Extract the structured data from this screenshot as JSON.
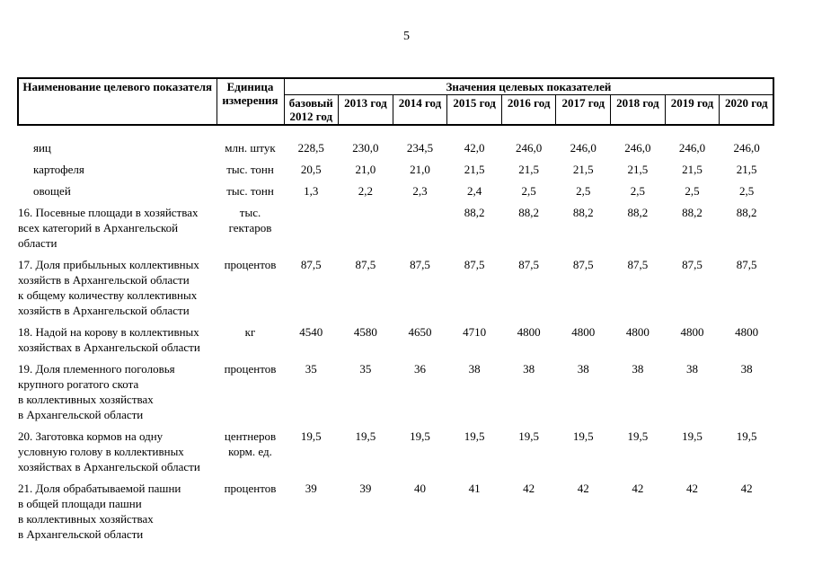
{
  "page": {
    "number": "5",
    "colors": {
      "background": "#ffffff",
      "text": "#000000",
      "table_border": "#000000"
    }
  },
  "table": {
    "header": {
      "name_col": "Наименование целевого показателя",
      "unit_col": "Единица\nизмерения",
      "values_group": "Значения целевых показателей",
      "years": [
        "базовый\n2012 год",
        "2013 год",
        "2014 год",
        "2015 год",
        "2016 год",
        "2017 год",
        "2018 год",
        "2019 год",
        "2020 год"
      ]
    },
    "rows": [
      {
        "indent": true,
        "name": "яиц",
        "unit": "млн. штук",
        "values": [
          "228,5",
          "230,0",
          "234,5",
          "42,0",
          "246,0",
          "246,0",
          "246,0",
          "246,0",
          "246,0"
        ]
      },
      {
        "indent": true,
        "name": "картофеля",
        "unit": "тыс. тонн",
        "values": [
          "20,5",
          "21,0",
          "21,0",
          "21,5",
          "21,5",
          "21,5",
          "21,5",
          "21,5",
          "21,5"
        ]
      },
      {
        "indent": true,
        "name": "овощей",
        "unit": "тыс. тонн",
        "values": [
          "1,3",
          "2,2",
          "2,3",
          "2,4",
          "2,5",
          "2,5",
          "2,5",
          "2,5",
          "2,5"
        ]
      },
      {
        "indent": false,
        "name": "16. Посевные площади в хозяйствах\nвсех категорий в Архангельской\nобласти",
        "unit": "тыс.\nгектаров",
        "values": [
          "",
          "",
          "",
          "88,2",
          "88,2",
          "88,2",
          "88,2",
          "88,2",
          "88,2"
        ]
      },
      {
        "indent": false,
        "name": "17. Доля прибыльных коллективных\nхозяйств в Архангельской области\nк общему количеству коллективных\nхозяйств в Архангельской области",
        "unit": "процентов",
        "values": [
          "87,5",
          "87,5",
          "87,5",
          "87,5",
          "87,5",
          "87,5",
          "87,5",
          "87,5",
          "87,5"
        ]
      },
      {
        "indent": false,
        "name": "18. Надой на корову в коллективных\nхозяйствах в Архангельской области",
        "unit": "кг",
        "values": [
          "4540",
          "4580",
          "4650",
          "4710",
          "4800",
          "4800",
          "4800",
          "4800",
          "4800"
        ]
      },
      {
        "indent": false,
        "name": "19. Доля племенного поголовья\nкрупного рогатого скота\nв коллективных хозяйствах\nв Архангельской области",
        "unit": "процентов",
        "values": [
          "35",
          "35",
          "36",
          "38",
          "38",
          "38",
          "38",
          "38",
          "38"
        ]
      },
      {
        "indent": false,
        "name": "20. Заготовка кормов на одну\nусловную голову в коллективных\nхозяйствах в Архангельской области",
        "unit": "центнеров\nкорм. ед.",
        "values": [
          "19,5",
          "19,5",
          "19,5",
          "19,5",
          "19,5",
          "19,5",
          "19,5",
          "19,5",
          "19,5"
        ]
      },
      {
        "indent": false,
        "name": "21. Доля обрабатываемой пашни\nв общей площади пашни\nв коллективных хозяйствах\nв Архангельской области",
        "unit": "процентов",
        "values": [
          "39",
          "39",
          "40",
          "41",
          "42",
          "42",
          "42",
          "42",
          "42"
        ]
      }
    ]
  }
}
